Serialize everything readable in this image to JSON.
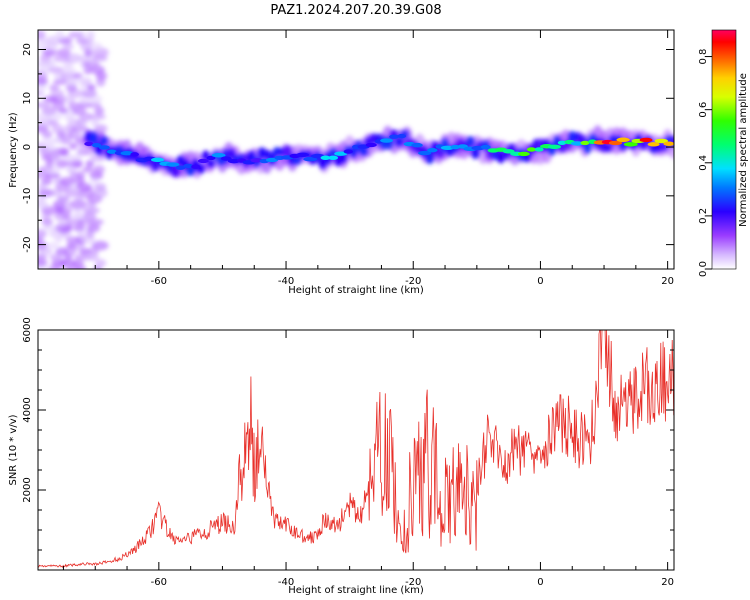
{
  "title": "PAZ1.2024.207.20.39.G08",
  "chart_data": [
    {
      "type": "heatmap",
      "xlabel": "Height of straight line (km)",
      "ylabel": "Frequency (Hz)",
      "xlim": [
        -79,
        21
      ],
      "ylim": [
        -25,
        24
      ],
      "xticks": [
        -60,
        -40,
        -20,
        0,
        20
      ],
      "yticks": [
        -20,
        -10,
        0,
        10,
        20
      ],
      "colorbar": {
        "label": "Normalized spectral amplitude",
        "range": [
          0.0,
          0.9
        ],
        "ticks": [
          0.0,
          0.2,
          0.4,
          0.6,
          0.8
        ],
        "tick_labels": [
          "0.0",
          "0.2",
          "0.4",
          "0.6",
          "0.8"
        ],
        "colormap": "hsv"
      },
      "ridge": {
        "x": [
          -71,
          -66,
          -62,
          -58,
          -54,
          -50,
          -46,
          -42,
          -38,
          -34,
          -30,
          -26,
          -22,
          -18,
          -14,
          -10,
          -6,
          -2,
          2,
          6,
          10,
          14,
          18,
          21
        ],
        "freq": [
          1,
          -1,
          -2.5,
          -4,
          -3.5,
          -2,
          -3,
          -2,
          -1.5,
          -2.5,
          -1,
          1,
          2,
          -1,
          0,
          0,
          -1,
          -1,
          0,
          1,
          1,
          1,
          1,
          0.5
        ],
        "amplitude": [
          0.25,
          0.3,
          0.3,
          0.35,
          0.25,
          0.3,
          0.25,
          0.3,
          0.2,
          0.35,
          0.3,
          0.3,
          0.3,
          0.35,
          0.3,
          0.3,
          0.5,
          0.55,
          0.45,
          0.45,
          0.8,
          0.75,
          0.8,
          0.7
        ]
      },
      "noise_band_x": [
        -79,
        -69
      ],
      "grid": false
    },
    {
      "type": "line",
      "xlabel": "Height of straight line (km)",
      "ylabel": "SNR (10 * v/v)",
      "xlim": [
        -79,
        21
      ],
      "ylim": [
        0,
        6000
      ],
      "xticks": [
        -60,
        -40,
        -20,
        0,
        20
      ],
      "yticks": [
        2000,
        4000,
        6000
      ],
      "series": [
        {
          "color": "#e8302a",
          "x": [
            -79,
            -75,
            -72,
            -70,
            -68,
            -66,
            -64,
            -62,
            -60,
            -58,
            -56,
            -54,
            -52,
            -50,
            -48,
            -46,
            -44,
            -42,
            -40,
            -38,
            -36,
            -34,
            -32,
            -30,
            -28,
            -26,
            -24,
            -22,
            -20,
            -18,
            -16,
            -14,
            -12,
            -10,
            -8,
            -6,
            -4,
            -2,
            0,
            2,
            4,
            6,
            8,
            10,
            12,
            14,
            16,
            18,
            20,
            21
          ],
          "y": [
            100,
            100,
            150,
            150,
            200,
            300,
            500,
            800,
            1400,
            800,
            700,
            900,
            1000,
            1200,
            1100,
            4900,
            3300,
            1300,
            1100,
            900,
            800,
            1200,
            1100,
            1600,
            1300,
            3800,
            4300,
            1200,
            2700,
            3700,
            2900,
            2400,
            2500,
            2200,
            3400,
            2600,
            3000,
            3100,
            3100,
            3500,
            3700,
            3200,
            3400,
            6000,
            3900,
            4200,
            4600,
            4500,
            4800,
            4800
          ]
        }
      ],
      "grid": false
    }
  ]
}
